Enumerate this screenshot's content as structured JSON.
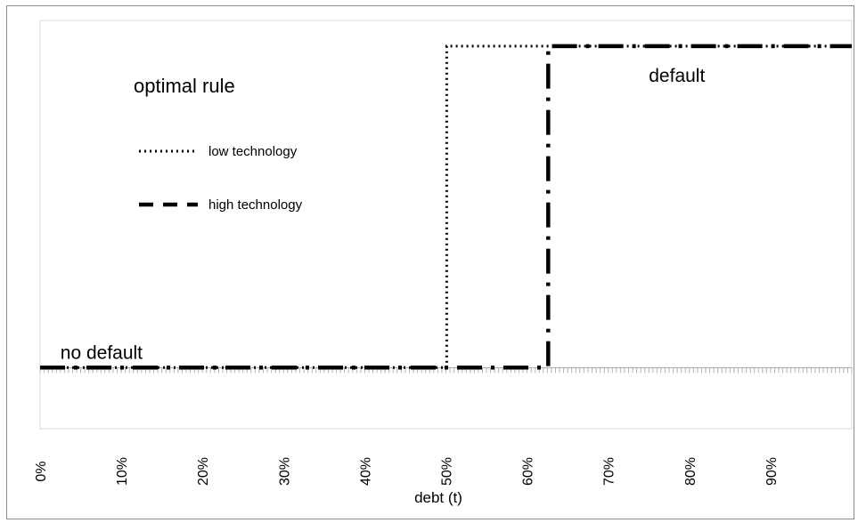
{
  "chart_data": {
    "type": "line",
    "title": "optimal rule",
    "xlabel": "debt (t)",
    "ylabel": "",
    "x_tick_labels": [
      "0%",
      "10%",
      "20%",
      "30%",
      "40%",
      "50%",
      "60%",
      "70%",
      "80%",
      "90%"
    ],
    "x_ticks": [
      0,
      10,
      20,
      30,
      40,
      50,
      60,
      70,
      80,
      90
    ],
    "xlim": [
      0,
      100
    ],
    "ylim": [
      -0.19,
      1.08
    ],
    "grid": false,
    "legend_position": "top-left",
    "annotations": [
      {
        "text": "no default",
        "x": 2.5,
        "y": 0
      },
      {
        "text": "default",
        "x": 75,
        "y": 1
      }
    ],
    "series": [
      {
        "name": "low technology",
        "style": "dotted",
        "color": "#000000",
        "x": [
          0,
          50.1,
          50.1,
          100
        ],
        "y": [
          0,
          0,
          1,
          1
        ]
      },
      {
        "name": "high technology",
        "style": "dashed",
        "color": "#000000",
        "x": [
          0,
          62.6,
          62.6,
          100
        ],
        "y": [
          0,
          0,
          1,
          1
        ]
      }
    ]
  }
}
